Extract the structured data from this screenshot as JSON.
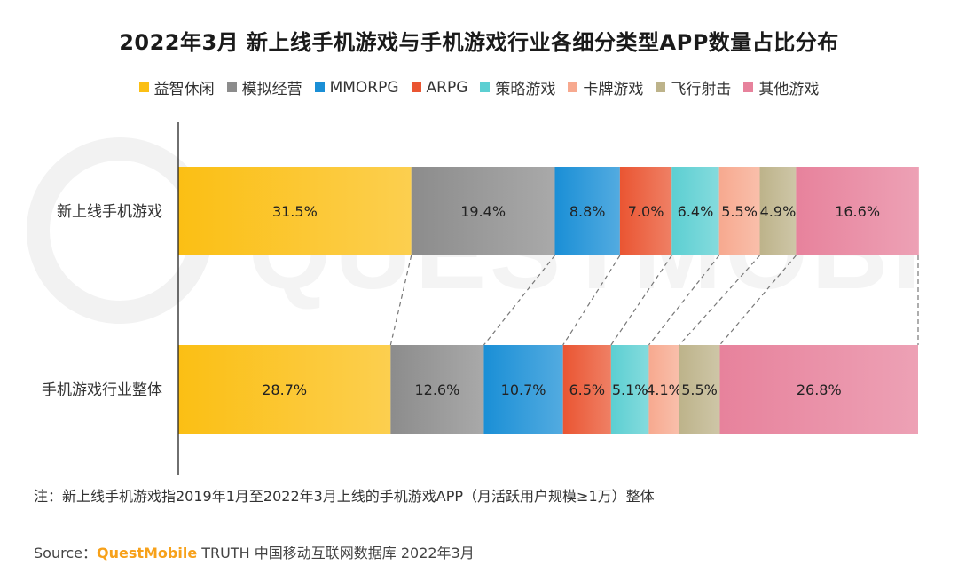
{
  "chart_data": {
    "type": "bar",
    "orientation": "horizontal",
    "stacked": "percent",
    "title": "2022年3月 新上线手机游戏与手机游戏行业各细分类型APP数量占比分布",
    "categories": [
      "新上线手机游戏",
      "手机游戏行业整体"
    ],
    "series": [
      {
        "name": "益智休闲",
        "values": [
          31.5,
          28.7
        ],
        "color": "#fbbf14"
      },
      {
        "name": "模拟经营",
        "values": [
          19.4,
          12.6
        ],
        "color": "#8c8c8c"
      },
      {
        "name": "MMORPG",
        "values": [
          8.8,
          10.7
        ],
        "color": "#1a8fd6"
      },
      {
        "name": "ARPG",
        "values": [
          7.0,
          6.5
        ],
        "color": "#ea5532"
      },
      {
        "name": "策略游戏",
        "values": [
          6.4,
          5.1
        ],
        "color": "#5ccfd2"
      },
      {
        "name": "卡牌游戏",
        "values": [
          5.5,
          4.1
        ],
        "color": "#f7a98f"
      },
      {
        "name": "飞行射击",
        "values": [
          4.9,
          5.5
        ],
        "color": "#bdb38a"
      },
      {
        "name": "其他游戏",
        "values": [
          16.6,
          26.8
        ],
        "color": "#e7829c"
      }
    ],
    "value_labels": [
      [
        "31.5%",
        "19.4%",
        "8.8%",
        "7.0%",
        "6.4%",
        "5.5%",
        "4.9%",
        "16.6%"
      ],
      [
        "28.7%",
        "12.6%",
        "10.7%",
        "6.5%",
        "5.1%",
        "4.1%",
        "5.5%",
        "26.8%"
      ]
    ],
    "xlim": [
      0,
      100
    ],
    "legend_position": "top",
    "grid": false,
    "connectors": "dashed"
  },
  "note": "注：新上线手机游戏指2019年1月至2022年3月上线的手机游戏APP（月活跃用户规模≥1万）整体",
  "source": {
    "label": "Source：",
    "brand": "QuestMobile",
    "rest": " TRUTH 中国移动互联网数据库 2022年3月"
  },
  "watermark_text": "QUESTMOBILE"
}
